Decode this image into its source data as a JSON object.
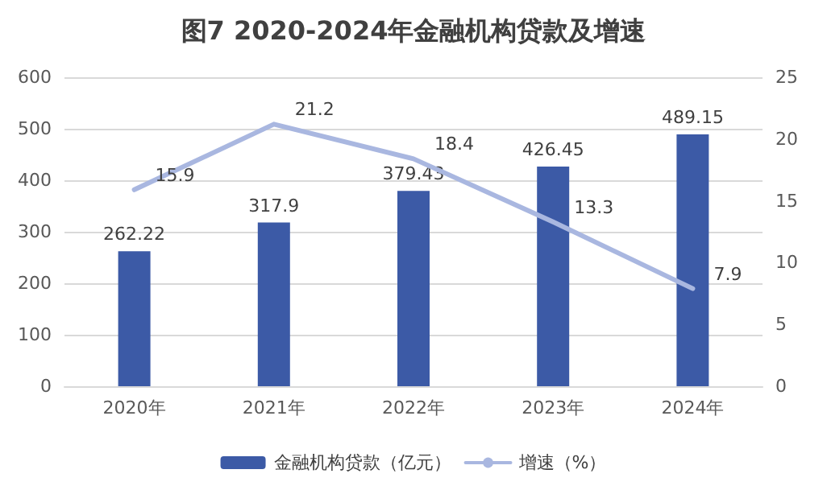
{
  "chart_data": {
    "type": "bar",
    "title": "图7 2020-2024年金融机构贷款及增速",
    "categories": [
      "2020年",
      "2021年",
      "2022年",
      "2023年",
      "2024年"
    ],
    "series": [
      {
        "name": "金融机构贷款（亿元）",
        "color": "#3c5aa6",
        "values": [
          262.22,
          317.9,
          379.43,
          426.45,
          489.15
        ]
      },
      {
        "name": "增速（%）",
        "type": "line",
        "axis": "y2",
        "color": "#a9b7e0",
        "values": [
          15.9,
          21.2,
          18.4,
          13.3,
          7.9
        ]
      }
    ],
    "ylim": [
      0,
      600
    ],
    "yticks": [
      0,
      100,
      200,
      300,
      400,
      500,
      600
    ],
    "y2lim": [
      0,
      25
    ],
    "y2ticks": [
      0,
      5,
      10,
      15,
      20,
      25
    ],
    "data_labels": true,
    "grid": "y",
    "legend": "bottom",
    "marker": "none",
    "line_style": "solid"
  }
}
